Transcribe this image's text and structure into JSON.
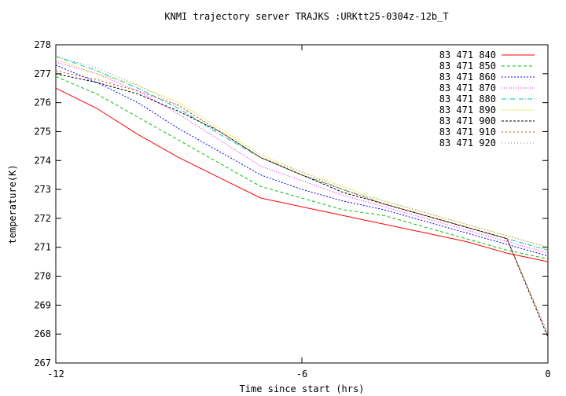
{
  "chart_data": {
    "type": "line",
    "title": "KNMI trajectory server TRAJKS :URKtt25-0304z-12b_T",
    "xlabel": "Time since start (hrs)",
    "ylabel": "temperature(K)",
    "xlim": [
      -12,
      0
    ],
    "ylim": [
      267,
      278
    ],
    "xticks": [
      -12,
      -6,
      0
    ],
    "yticks": [
      267,
      268,
      269,
      270,
      271,
      272,
      273,
      274,
      275,
      276,
      277,
      278
    ],
    "grid": false,
    "legend_position": "top-right",
    "x": [
      -12,
      -11,
      -10,
      -9,
      -8,
      -7,
      -6,
      -5,
      -4,
      -3,
      -2,
      -1,
      0
    ],
    "series": [
      {
        "name": "83 471 840",
        "color": "#ff0000",
        "dash": "",
        "values": [
          276.5,
          275.8,
          274.9,
          274.1,
          273.4,
          272.7,
          272.4,
          272.1,
          271.8,
          271.5,
          271.2,
          270.8,
          270.5
        ]
      },
      {
        "name": "83 471 850",
        "color": "#00c000",
        "dash": "4,3",
        "values": [
          276.9,
          276.3,
          275.5,
          274.7,
          273.9,
          273.1,
          272.7,
          272.3,
          272.1,
          271.7,
          271.3,
          270.9,
          270.6
        ]
      },
      {
        "name": "83 471 860",
        "color": "#0000ff",
        "dash": "2,2",
        "values": [
          277.3,
          276.7,
          276.0,
          275.1,
          274.3,
          273.5,
          273.0,
          272.6,
          272.3,
          271.9,
          271.5,
          271.1,
          270.7
        ]
      },
      {
        "name": "83 471 870",
        "color": "#ff00ff",
        "dash": "1,2",
        "values": [
          277.4,
          277.0,
          276.4,
          275.6,
          274.7,
          273.8,
          273.3,
          272.8,
          272.4,
          272.0,
          271.6,
          271.2,
          270.8
        ]
      },
      {
        "name": "83 471 880",
        "color": "#00c0c0",
        "dash": "6,2,1,2",
        "values": [
          277.6,
          277.1,
          276.5,
          275.8,
          274.9,
          274.1,
          273.5,
          273.0,
          272.5,
          272.1,
          271.7,
          271.3,
          270.9
        ]
      },
      {
        "name": "83 471 890",
        "color": "#e0e000",
        "dash": "1,1",
        "values": [
          277.5,
          277.0,
          276.6,
          276.0,
          275.1,
          274.2,
          273.6,
          273.1,
          272.6,
          272.2,
          271.8,
          271.4,
          271.0
        ]
      },
      {
        "name": "83 471 900",
        "color": "#000000",
        "dash": "3,2",
        "values": [
          277.0,
          276.7,
          276.3,
          275.7,
          275.0,
          274.1,
          273.5,
          272.9,
          272.5,
          272.1,
          271.7,
          271.3,
          267.9
        ]
      },
      {
        "name": "83 471 910",
        "color": "#c04000",
        "dash": "2,3",
        "values": [
          277.1,
          276.8,
          276.4,
          275.9,
          275.0,
          274.1,
          273.5,
          273.0,
          272.5,
          272.1,
          271.7,
          271.3,
          268.0
        ]
      },
      {
        "name": "83 471 920",
        "color": "#808080",
        "dash": "1,3",
        "values": [
          277.6,
          277.2,
          276.6,
          275.9,
          275.0,
          274.1,
          273.6,
          273.0,
          272.6,
          272.2,
          271.8,
          271.4,
          271.0
        ]
      }
    ]
  }
}
